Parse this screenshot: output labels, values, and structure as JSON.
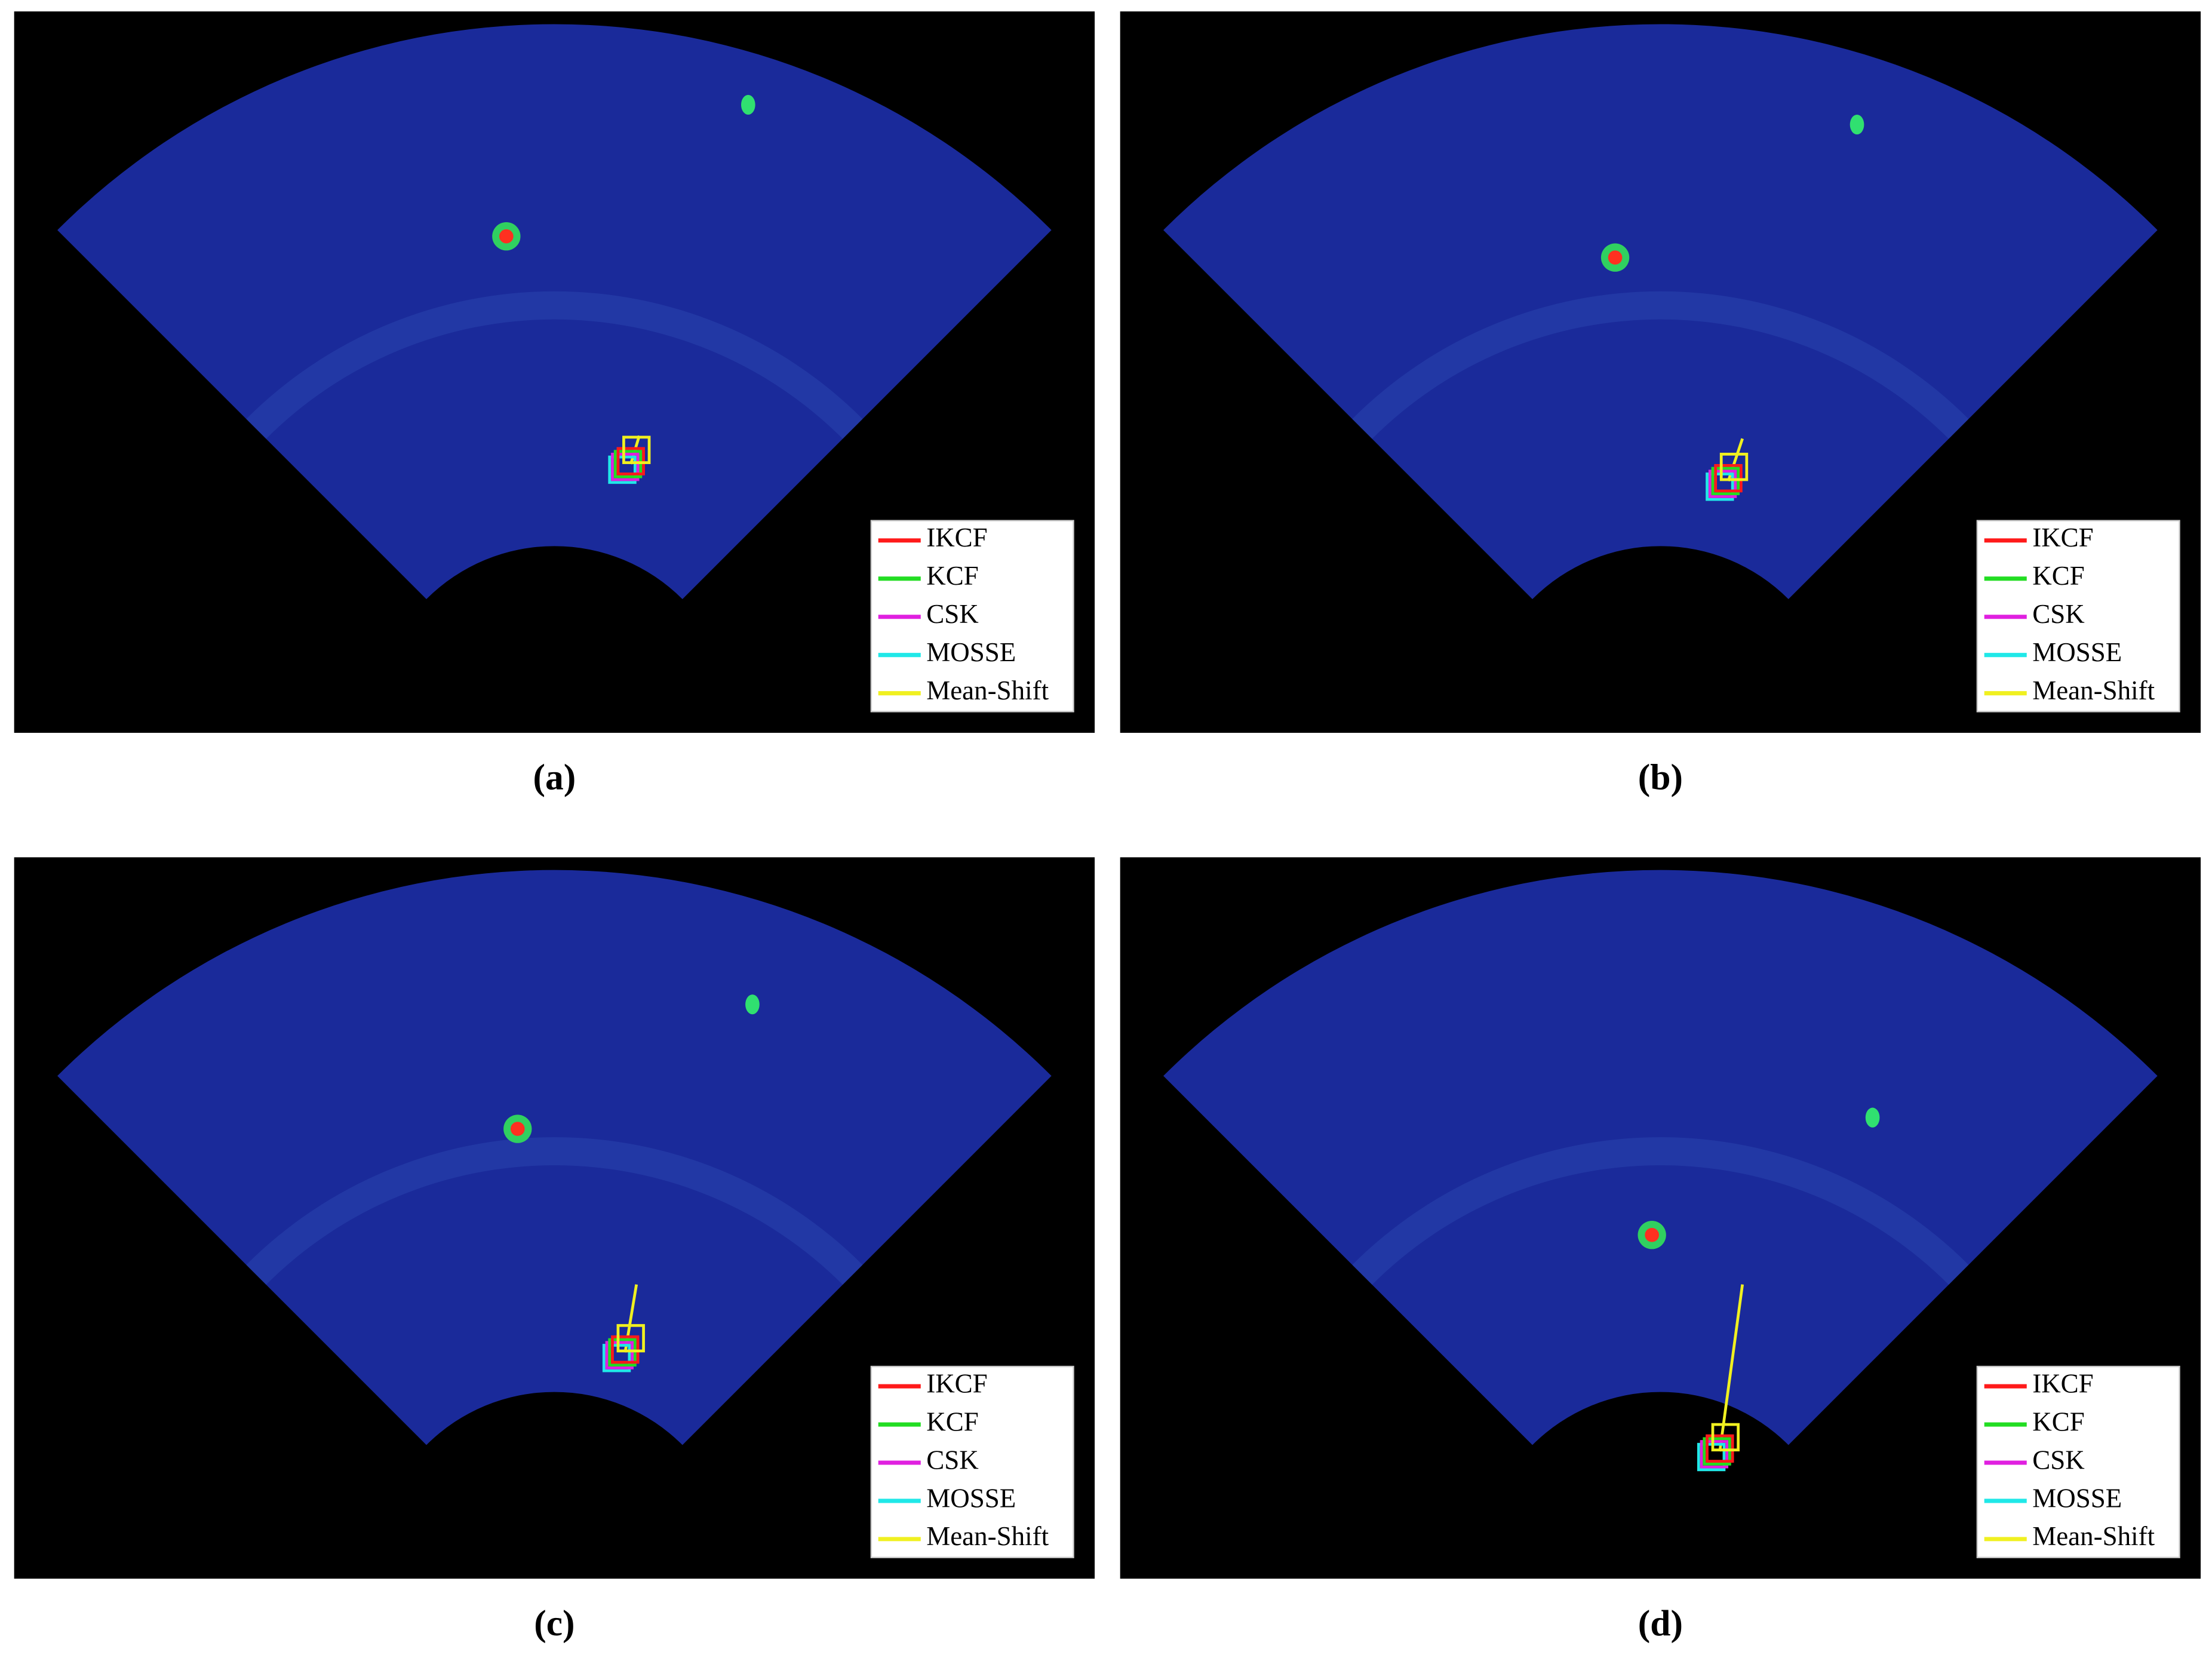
{
  "legend": [
    {
      "name": "IKCF",
      "color": "#ff1a1a"
    },
    {
      "name": "KCF",
      "color": "#22dd22"
    },
    {
      "name": "CSK",
      "color": "#e020e0"
    },
    {
      "name": "MOSSE",
      "color": "#20e8e8"
    },
    {
      "name": "Mean-Shift",
      "color": "#f0f020"
    }
  ],
  "panels": [
    {
      "caption": "(a)"
    },
    {
      "caption": "(b)"
    },
    {
      "caption": "(c)"
    },
    {
      "caption": "(d)"
    }
  ]
}
